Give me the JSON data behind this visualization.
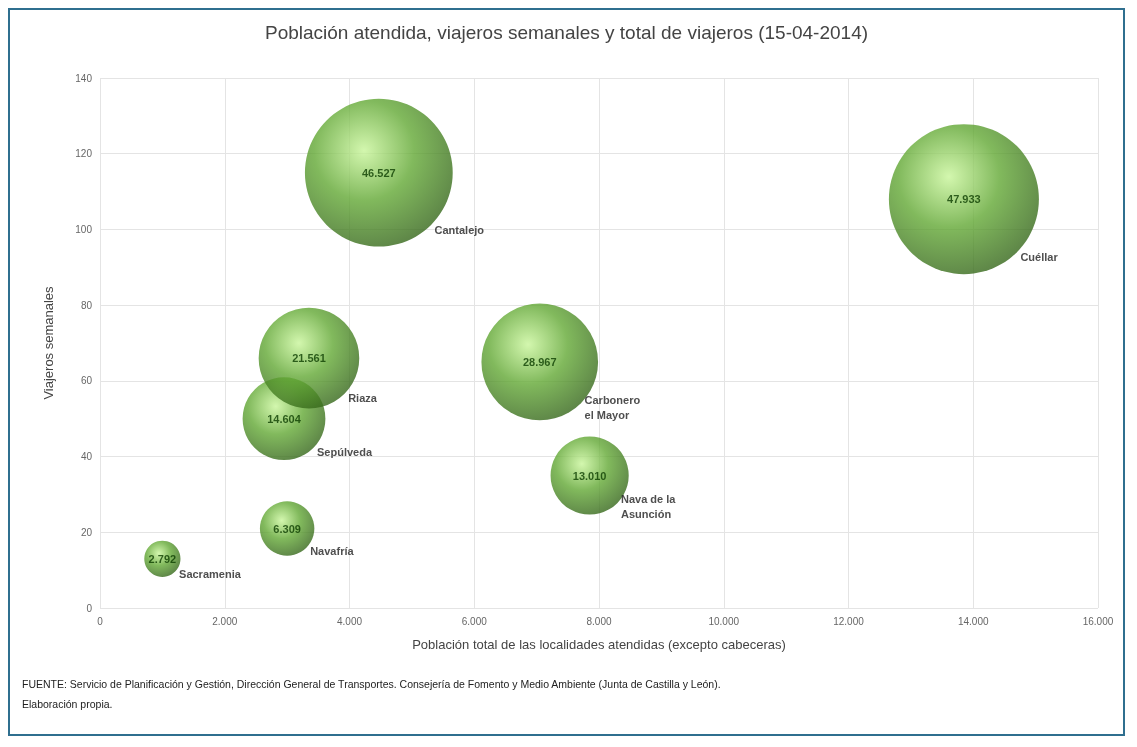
{
  "chart_data": {
    "type": "bubble",
    "title": "Población atendida, viajeros semanales y total de viajeros (15-04-2014)",
    "xlabel": "Población total de las localidades atendidas (excepto cabeceras)",
    "ylabel": "Viajeros semanales",
    "series": [
      {
        "name": "Sacramenia",
        "color": "#62a834",
        "x": [
          1000
        ],
        "values": [
          13
        ],
        "sizes": [
          2792
        ],
        "value_labels": [
          "2.792"
        ]
      },
      {
        "name": "Navafría",
        "color": "#62a834",
        "x": [
          3000
        ],
        "values": [
          21
        ],
        "sizes": [
          6309
        ],
        "value_labels": [
          "6.309"
        ]
      },
      {
        "name": "Sepúlveda",
        "color": "#62a834",
        "x": [
          2950
        ],
        "values": [
          50
        ],
        "sizes": [
          14604
        ],
        "value_labels": [
          "14.604"
        ]
      },
      {
        "name": "Riaza",
        "color": "#62a834",
        "x": [
          3350
        ],
        "values": [
          66
        ],
        "sizes": [
          21561
        ],
        "value_labels": [
          "21.561"
        ]
      },
      {
        "name": "Cantalejo",
        "color": "#62a834",
        "x": [
          4470
        ],
        "values": [
          115
        ],
        "sizes": [
          46527
        ],
        "value_labels": [
          "46.527"
        ]
      },
      {
        "name": "Carbonero\nel Mayor",
        "color": "#62a834",
        "x": [
          7050
        ],
        "values": [
          65
        ],
        "sizes": [
          28967
        ],
        "value_labels": [
          "28.967"
        ]
      },
      {
        "name": "Nava de la\nAsunción",
        "color": "#62a834",
        "x": [
          7850
        ],
        "values": [
          35
        ],
        "sizes": [
          13010
        ],
        "value_labels": [
          "13.010"
        ]
      },
      {
        "name": "Cuéllar",
        "color": "#62a834",
        "x": [
          13850
        ],
        "values": [
          108
        ],
        "sizes": [
          47933
        ],
        "value_labels": [
          "47.933"
        ]
      }
    ],
    "xlim": [
      0,
      16000
    ],
    "xticks": [
      0,
      {
        "value": 2000,
        "label": "2.000"
      },
      {
        "value": 4000,
        "label": "4.000"
      },
      {
        "value": 6000,
        "label": "6.000"
      },
      {
        "value": 8000,
        "label": "8.000"
      },
      {
        "value": 10000,
        "label": "10.000"
      },
      {
        "value": 12000,
        "label": "12.000"
      },
      {
        "value": 14000,
        "label": "14.000"
      },
      {
        "value": 16000,
        "label": "16.000"
      }
    ],
    "ylim": [
      0,
      140
    ],
    "yticks": [
      0,
      20,
      40,
      60,
      80,
      100,
      120,
      140
    ],
    "grid": true,
    "annotations": [
      "FUENTE: Servicio de Planificación y Gestión, Dirección General de Transportes. Consejería de Fomento y Medio Ambiente (Junta de Castilla y León).",
      "Elaboración propia."
    ]
  }
}
